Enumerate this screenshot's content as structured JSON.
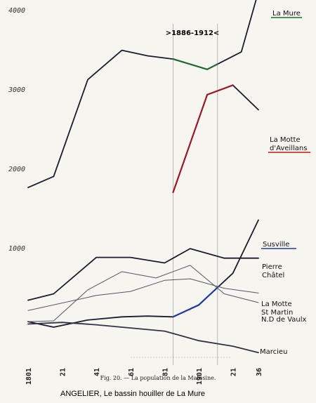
{
  "chart_data": {
    "type": "line",
    "title": "La population de la Matésine",
    "caption": "Fig. 20. — La population de la Matésine.",
    "credit": "ANGELIER, Le bassin houiller de La Mure",
    "period_label": ">1886-1912<",
    "period_range": [
      1886,
      1912
    ],
    "x_ticks": [
      "1801",
      "21",
      "41",
      "61",
      "81",
      "1901",
      "21",
      "36"
    ],
    "x_tick_values": [
      1801,
      1821,
      1841,
      1861,
      1881,
      1901,
      1921,
      1936
    ],
    "y_ticks": [
      "1000",
      "2000",
      "3000",
      "4000"
    ],
    "y_tick_values": [
      1000,
      2000,
      3000,
      4000
    ],
    "xlim": [
      1801,
      1936
    ],
    "ylim": [
      0,
      4400
    ],
    "grid": false,
    "series": [
      {
        "name": "La Mure",
        "color": "#1c1c2e",
        "highlight": "#1f6b2e",
        "x": [
          1801,
          1816,
          1836,
          1856,
          1871,
          1886,
          1906,
          1926,
          1936
        ],
        "y": [
          1760,
          1900,
          3120,
          3490,
          3420,
          3380,
          3250,
          3470,
          4230
        ],
        "labels": [
          "La Mure"
        ],
        "underline": "#1f6b2e"
      },
      {
        "name": "La Motte d'Aveillans",
        "color": "#1c1c2e",
        "highlight": "#9b1b2a",
        "x": [
          1886,
          1906,
          1921,
          1936
        ],
        "y": [
          1700,
          2930,
          3050,
          2740
        ],
        "labels": [
          "La Motte",
          "d'Aveillans"
        ],
        "underline": "#cc1111"
      },
      {
        "name": "Susville",
        "color": "#1c1c2e",
        "highlight": "#1f3b9e",
        "x": [
          1801,
          1816,
          1836,
          1856,
          1871,
          1886,
          1901,
          1921,
          1936
        ],
        "y": [
          70,
          0,
          90,
          130,
          140,
          130,
          280,
          680,
          1350
        ],
        "labels": [
          "Susville"
        ],
        "underline": "#1f3b9e"
      },
      {
        "name": "Pierre Châtel",
        "color": "#1c1c2e",
        "x": [
          1801,
          1816,
          1841,
          1861,
          1881,
          1896,
          1916,
          1936
        ],
        "y": [
          340,
          420,
          880,
          880,
          810,
          990,
          870,
          870
        ],
        "labels": [
          "Pierre",
          "Châtel"
        ]
      },
      {
        "name": "La Motte St Martin",
        "color": "#555566",
        "x": [
          1801,
          1841,
          1861,
          1881,
          1896,
          1916,
          1936
        ],
        "y": [
          210,
          400,
          450,
          590,
          610,
          490,
          430
        ],
        "labels": [
          "La Motte",
          "St Martin"
        ]
      },
      {
        "name": "N.D de Vaulx",
        "color": "#555566",
        "x": [
          1801,
          1816,
          1836,
          1856,
          1876,
          1896,
          1916,
          1936
        ],
        "y": [
          70,
          80,
          470,
          700,
          620,
          780,
          420,
          310
        ],
        "labels": [
          "N.D de Vaulx"
        ]
      },
      {
        "name": "Marcieu",
        "color": "#333344",
        "x": [
          1801,
          1821,
          1841,
          1861,
          1881,
          1901,
          1921,
          1936
        ],
        "y": [
          40,
          60,
          30,
          -10,
          -50,
          -170,
          -240,
          -320
        ],
        "labels": [
          "Marcieu"
        ]
      }
    ]
  }
}
